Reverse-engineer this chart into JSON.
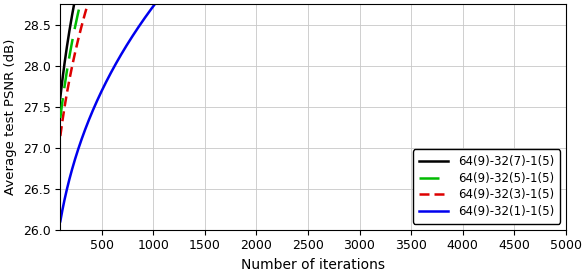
{
  "title": "",
  "xlabel": "Number of iterations",
  "ylabel": "Average test PSNR (dB)",
  "xlim": [
    100,
    5000
  ],
  "ylim": [
    26.0,
    28.75
  ],
  "yticks": [
    26.0,
    26.5,
    27.0,
    27.5,
    28.0,
    28.5
  ],
  "xticks": [
    500,
    1000,
    1500,
    2000,
    2500,
    3000,
    3500,
    4000,
    4500,
    5000
  ],
  "series": [
    {
      "label": "64(9)-32(7)-1(5)",
      "color": "#000000",
      "linestyle": "solid",
      "linewidth": 1.8,
      "a": 0.52,
      "b": 24.62,
      "power": 0.38
    },
    {
      "label": "64(9)-32(5)-1(5)",
      "color": "#00bb00",
      "linestyle": "dashed_long",
      "linewidth": 1.8,
      "a": 0.5,
      "b": 24.55,
      "power": 0.375
    },
    {
      "label": "64(9)-32(3)-1(5)",
      "color": "#dd0000",
      "linestyle": "dashed_short",
      "linewidth": 1.8,
      "a": 0.465,
      "b": 24.55,
      "power": 0.373
    },
    {
      "label": "64(9)-32(1)-1(5)",
      "color": "#0000ee",
      "linestyle": "solid",
      "linewidth": 1.8,
      "a": 0.355,
      "b": 24.15,
      "power": 0.37
    }
  ],
  "legend_loc": "lower right",
  "legend_fontsize": 8.5,
  "background_color": "#ffffff",
  "grid": true
}
